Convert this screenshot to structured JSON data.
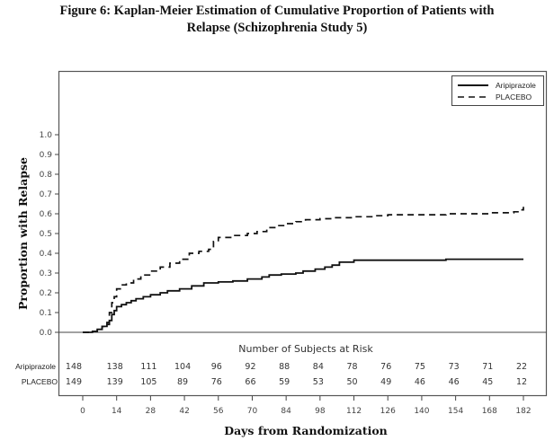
{
  "figure": {
    "title_line1": "Figure 6:  Kaplan-Meier Estimation of Cumulative Proportion of Patients with",
    "title_line2": "Relapse (Schizophrenia Study 5)"
  },
  "chart_data": {
    "type": "line",
    "subtype": "kaplan-meier-step",
    "title": "Figure 6: Kaplan-Meier Estimation of Cumulative Proportion of Patients with Relapse (Schizophrenia Study 5)",
    "xlabel": "Days from Randomization",
    "ylabel": "Proportion with Relapse",
    "xlim": [
      0,
      182
    ],
    "ylim": [
      0,
      1.0
    ],
    "x_ticks": [
      0,
      14,
      28,
      42,
      56,
      70,
      84,
      98,
      112,
      126,
      140,
      154,
      168,
      182
    ],
    "x_tick_labels": [
      "0",
      "14",
      "28",
      "42",
      "56",
      "70",
      "84",
      "98",
      "112",
      "126",
      "140",
      "154",
      "168",
      "182"
    ],
    "y_ticks": [
      0.0,
      0.1,
      0.2,
      0.3,
      0.4,
      0.5,
      0.6,
      0.7,
      0.8,
      0.9,
      1.0
    ],
    "y_tick_labels": [
      "0.0",
      "0.1",
      "0.2",
      "0.3",
      "0.4",
      "0.5",
      "0.6",
      "0.7",
      "0.8",
      "0.9",
      "1.0"
    ],
    "grid": false,
    "legend_position": "top-right",
    "series": [
      {
        "name": "Aripiprazole",
        "line_style": "solid",
        "color": "#111111",
        "x": [
          0,
          4,
          6,
          8,
          10,
          11,
          12,
          13,
          14,
          16,
          18,
          20,
          22,
          25,
          28,
          32,
          35,
          40,
          45,
          50,
          56,
          62,
          68,
          74,
          77,
          82,
          88,
          91,
          96,
          100,
          103,
          106,
          112,
          140,
          150,
          182
        ],
        "y": [
          0.0,
          0.005,
          0.015,
          0.03,
          0.04,
          0.06,
          0.09,
          0.11,
          0.13,
          0.14,
          0.15,
          0.16,
          0.17,
          0.18,
          0.19,
          0.2,
          0.21,
          0.22,
          0.235,
          0.25,
          0.255,
          0.26,
          0.27,
          0.28,
          0.29,
          0.295,
          0.3,
          0.31,
          0.32,
          0.33,
          0.34,
          0.355,
          0.365,
          0.365,
          0.37,
          0.37
        ]
      },
      {
        "name": "PLACEBO",
        "line_style": "dashed",
        "color": "#111111",
        "x": [
          0,
          4,
          6,
          8,
          10,
          11,
          12,
          13,
          14,
          16,
          18,
          21,
          24,
          28,
          32,
          36,
          40,
          44,
          48,
          52,
          54,
          56,
          62,
          68,
          72,
          76,
          80,
          84,
          88,
          92,
          98,
          104,
          112,
          120,
          126,
          140,
          150,
          160,
          168,
          178,
          181,
          182
        ],
        "y": [
          0.0,
          0.005,
          0.015,
          0.03,
          0.05,
          0.1,
          0.15,
          0.18,
          0.22,
          0.24,
          0.25,
          0.27,
          0.29,
          0.31,
          0.33,
          0.35,
          0.37,
          0.4,
          0.41,
          0.42,
          0.46,
          0.48,
          0.49,
          0.5,
          0.51,
          0.53,
          0.54,
          0.55,
          0.56,
          0.57,
          0.575,
          0.58,
          0.585,
          0.59,
          0.595,
          0.595,
          0.6,
          0.6,
          0.605,
          0.61,
          0.62,
          0.635
        ]
      }
    ],
    "risk_table": {
      "title": "Number of Subjects at Risk",
      "days": [
        0,
        14,
        28,
        42,
        56,
        70,
        84,
        98,
        112,
        126,
        140,
        154,
        168,
        182
      ],
      "rows": [
        {
          "group": "Aripiprazole",
          "values": [
            148,
            138,
            111,
            104,
            96,
            92,
            88,
            84,
            78,
            76,
            75,
            73,
            71,
            22
          ]
        },
        {
          "group": "PLACEBO",
          "values": [
            149,
            139,
            105,
            89,
            76,
            66,
            59,
            53,
            50,
            49,
            46,
            46,
            45,
            12
          ]
        }
      ]
    }
  }
}
